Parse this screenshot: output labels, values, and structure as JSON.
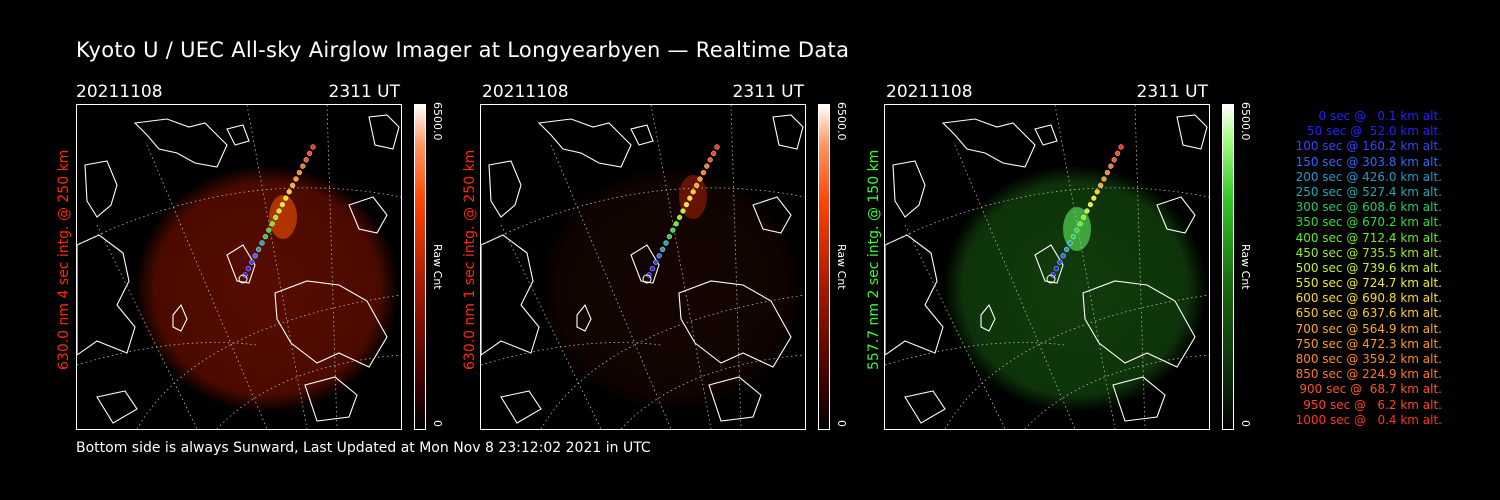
{
  "title": "Kyoto U / UEC All-sky Airglow Imager at Longyearbyen — Realtime Data",
  "footer": "Bottom side is always Sunward, Last Updated at Mon Nov  8 23:12:02 2021 in UTC",
  "panels": [
    {
      "date": "20211108",
      "time": "2311 UT",
      "side_label": "630.0 nm 4 sec intg. @ 250 km",
      "label_color": "#ff2a00",
      "colorbar": {
        "max": "6500.0",
        "min": "0",
        "unit": "Raw Cnt",
        "color": "#ff3300"
      }
    },
    {
      "date": "20211108",
      "time": "2311 UT",
      "side_label": "630.0 nm 1 sec intg. @ 250 km",
      "label_color": "#ff2a00",
      "colorbar": {
        "max": "6500.0",
        "min": "0",
        "unit": "Raw Cnt",
        "color": "#ff3300"
      }
    },
    {
      "date": "20211108",
      "time": "2311 UT",
      "side_label": "557.7 nm 2 sec intg. @ 150 km",
      "label_color": "#33ff33",
      "colorbar": {
        "max": "6500.0",
        "min": "0",
        "unit": "Raw Cnt",
        "color": "#33cc33"
      }
    }
  ],
  "legend": [
    {
      "text": "   0 sec @   0.1 km alt.",
      "color": "#2222ff"
    },
    {
      "text": "  50 sec @  52.0 km alt.",
      "color": "#2222ff"
    },
    {
      "text": " 100 sec @ 160.2 km alt.",
      "color": "#3344ff"
    },
    {
      "text": " 150 sec @ 303.8 km alt.",
      "color": "#3366ff"
    },
    {
      "text": " 200 sec @ 426.0 km alt.",
      "color": "#2299cc"
    },
    {
      "text": " 250 sec @ 527.4 km alt.",
      "color": "#22aaaa"
    },
    {
      "text": " 300 sec @ 608.6 km alt.",
      "color": "#22cc66"
    },
    {
      "text": " 350 sec @ 670.2 km alt.",
      "color": "#33dd33"
    },
    {
      "text": " 400 sec @ 712.4 km alt.",
      "color": "#66ee22"
    },
    {
      "text": " 450 sec @ 735.5 km alt.",
      "color": "#99ee22"
    },
    {
      "text": " 500 sec @ 739.6 km alt.",
      "color": "#ccee22"
    },
    {
      "text": " 550 sec @ 724.7 km alt.",
      "color": "#eeee22"
    },
    {
      "text": " 600 sec @ 690.8 km alt.",
      "color": "#ffdd22"
    },
    {
      "text": " 650 sec @ 637.6 km alt.",
      "color": "#ffcc22"
    },
    {
      "text": " 700 sec @ 564.9 km alt.",
      "color": "#ffaa22"
    },
    {
      "text": " 750 sec @ 472.3 km alt.",
      "color": "#ff9922"
    },
    {
      "text": " 800 sec @ 359.2 km alt.",
      "color": "#ff8822"
    },
    {
      "text": " 850 sec @ 224.9 km alt.",
      "color": "#ff7722"
    },
    {
      "text": " 900 sec @  68.7 km alt.",
      "color": "#ff5522"
    },
    {
      "text": " 950 sec @   6.2 km alt.",
      "color": "#ff4422"
    },
    {
      "text": "1000 sec @   0.4 km alt.",
      "color": "#ff3322"
    }
  ],
  "colors": {
    "background": "#000000",
    "text": "#ffffff",
    "red_glow": "#aa1800",
    "green_glow": "#1c5a14"
  }
}
